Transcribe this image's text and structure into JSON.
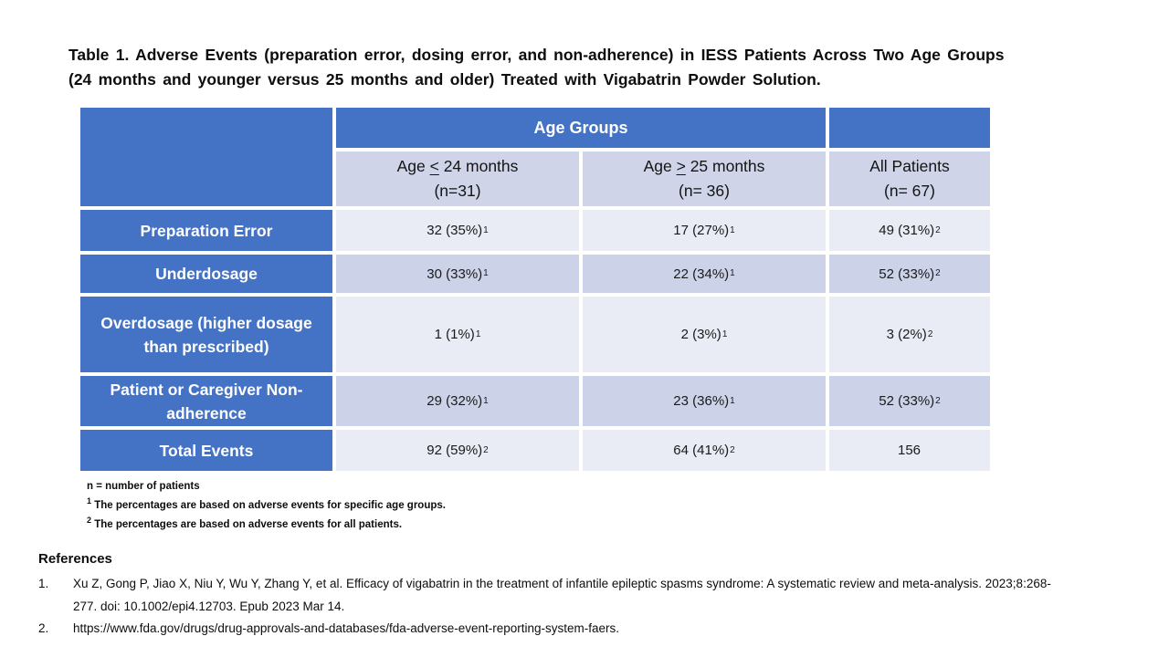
{
  "title": {
    "line1": "Table 1. Adverse Events (preparation error, dosing error, and non-adherence) in IESS Patients Across Two Age Groups",
    "line2": "(24 months and younger versus 25 months and older) Treated with Vigabatrin Powder Solution."
  },
  "colors": {
    "header_blue": "#4472C4",
    "subheader_bg": "#CFD4E8",
    "band_light": "#E9EBF5",
    "band_dark": "#CCD3E8"
  },
  "table": {
    "group_header": "Age Groups",
    "columns": [
      {
        "line1_pre": "Age ",
        "cmp": "<",
        "line1_post": " 24 months",
        "line2": "(n=31)"
      },
      {
        "line1_pre": "Age ",
        "cmp": ">",
        "line1_post": " 25 months",
        "line2": "(n= 36)"
      },
      {
        "line1_pre": "All Patients",
        "cmp": "",
        "line1_post": "",
        "line2": "(n= 67)"
      }
    ],
    "rows": [
      {
        "label": "Preparation Error",
        "cells": [
          {
            "v": "32 (35%)",
            "s": "1"
          },
          {
            "v": "17 (27%)",
            "s": "1"
          },
          {
            "v": "49 (31%)",
            "s": "2"
          }
        ]
      },
      {
        "label": "Underdosage",
        "cells": [
          {
            "v": "30 (33%)",
            "s": "1"
          },
          {
            "v": "22 (34%)",
            "s": "1"
          },
          {
            "v": "52 (33%)",
            "s": "2"
          }
        ]
      },
      {
        "label": "Overdosage (higher dosage than prescribed)",
        "cells": [
          {
            "v": "1 (1%)",
            "s": "1"
          },
          {
            "v": "2 (3%)",
            "s": "1"
          },
          {
            "v": "3 (2%)",
            "s": "2"
          }
        ]
      },
      {
        "label": "Patient or Caregiver Non-adherence",
        "cells": [
          {
            "v": "29 (32%)",
            "s": "1"
          },
          {
            "v": "23 (36%)",
            "s": "1"
          },
          {
            "v": "52 (33%)",
            "s": "2"
          }
        ]
      },
      {
        "label": "Total Events",
        "cells": [
          {
            "v": "92 (59%)",
            "s": "2"
          },
          {
            "v": "64 (41%)",
            "s": "2"
          },
          {
            "v": "156",
            "s": ""
          }
        ]
      }
    ]
  },
  "footnotes": [
    {
      "sup": "",
      "text": "n = number of patients"
    },
    {
      "sup": "1",
      "text": " The percentages are based on adverse events for specific age groups."
    },
    {
      "sup": "2",
      "text": " The percentages are based on adverse events for all patients."
    }
  ],
  "references": {
    "heading": "References",
    "items": [
      {
        "num": "1.",
        "text": "Xu Z, Gong P, Jiao X, Niu Y, Wu Y, Zhang Y, et al. Efficacy of vigabatrin in the treatment of infantile epileptic spasms syndrome: A systematic review and meta-analysis. 2023;8:268-277. doi: 10.1002/epi4.12703. Epub 2023 Mar 14."
      },
      {
        "num": "2.",
        "text": "https://www.fda.gov/drugs/drug-approvals-and-databases/fda-adverse-event-reporting-system-faers."
      }
    ]
  }
}
